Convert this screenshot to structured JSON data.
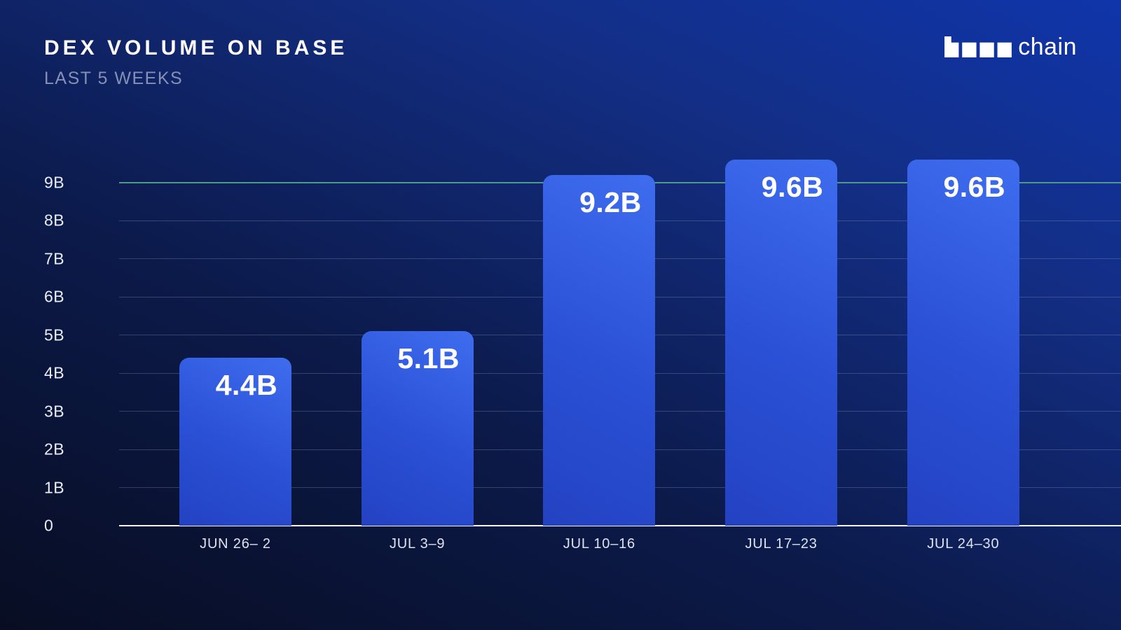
{
  "header": {
    "title": "DEX VOLUME ON BASE",
    "subtitle": "LAST 5 WEEKS",
    "logo_text": "chain",
    "logo_icon": "blocks-logo-icon"
  },
  "colors": {
    "background_top": "#0f35aa",
    "background_bottom": "#080d22",
    "bar_gradient_dark": "#2342c2",
    "bar_gradient_light": "#3f6def",
    "gridline": "rgba(160,176,212,0.28)",
    "top_gridline_teal": "#4e9a89",
    "baseline_white": "#f2f5fa",
    "title_text": "#ffffff",
    "subtitle_text": "#8590b6",
    "axis_text": "#e9edf6",
    "xaxis_text": "#dde3ef"
  },
  "chart_data": {
    "type": "bar",
    "title": "DEX VOLUME ON BASE",
    "subtitle": "LAST 5 WEEKS",
    "categories": [
      "JUN 26– 2",
      "JUL 3–9",
      "JUL 10–16",
      "JUL 17–23",
      "JUL 24–30"
    ],
    "values": [
      4.4,
      5.1,
      9.2,
      9.6,
      9.6
    ],
    "value_labels": [
      "4.4B",
      "5.1B",
      "9.2B",
      "9.6B",
      "9.6B"
    ],
    "unit": "B",
    "xlabel": "",
    "ylabel": "",
    "ylim": [
      0,
      9
    ],
    "yticks": [
      "0",
      "1B",
      "2B",
      "3B",
      "4B",
      "5B",
      "6B",
      "7B",
      "8B",
      "9B"
    ],
    "highlight_gridline": "9B",
    "grid": true,
    "legend": false
  }
}
